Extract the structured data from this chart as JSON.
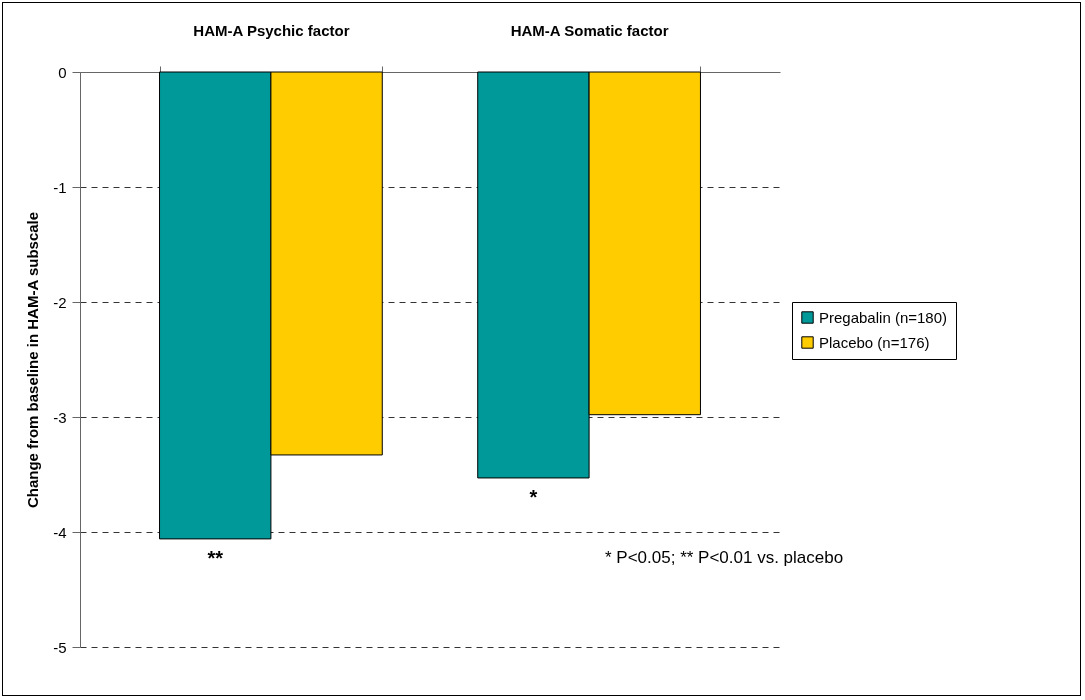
{
  "chart_data": {
    "type": "bar",
    "categories": [
      "HAM-A Psychic factor",
      "HAM-A Somatic factor"
    ],
    "series": [
      {
        "name": "Pregabalin (n=180)",
        "color": "#009999",
        "values": [
          -4.06,
          -3.53
        ]
      },
      {
        "name": "Placebo (n=176)",
        "color": "#ffcc00",
        "values": [
          -3.33,
          -2.98
        ]
      }
    ],
    "ylabel": "Change from baseline in HAM-A subscale",
    "ylim": [
      -5,
      0
    ],
    "yticks": [
      0,
      -1,
      -2,
      -3,
      -4,
      -5
    ],
    "grid": "y",
    "legend": "right",
    "annotations": [
      {
        "text": "**",
        "x": "HAM-A Psychic factor",
        "y": -4.06
      },
      {
        "text": "*",
        "x": "HAM-A Somatic factor",
        "y": -3.53
      },
      "* P<0.05; ** P<0.01 vs. placebo"
    ]
  }
}
